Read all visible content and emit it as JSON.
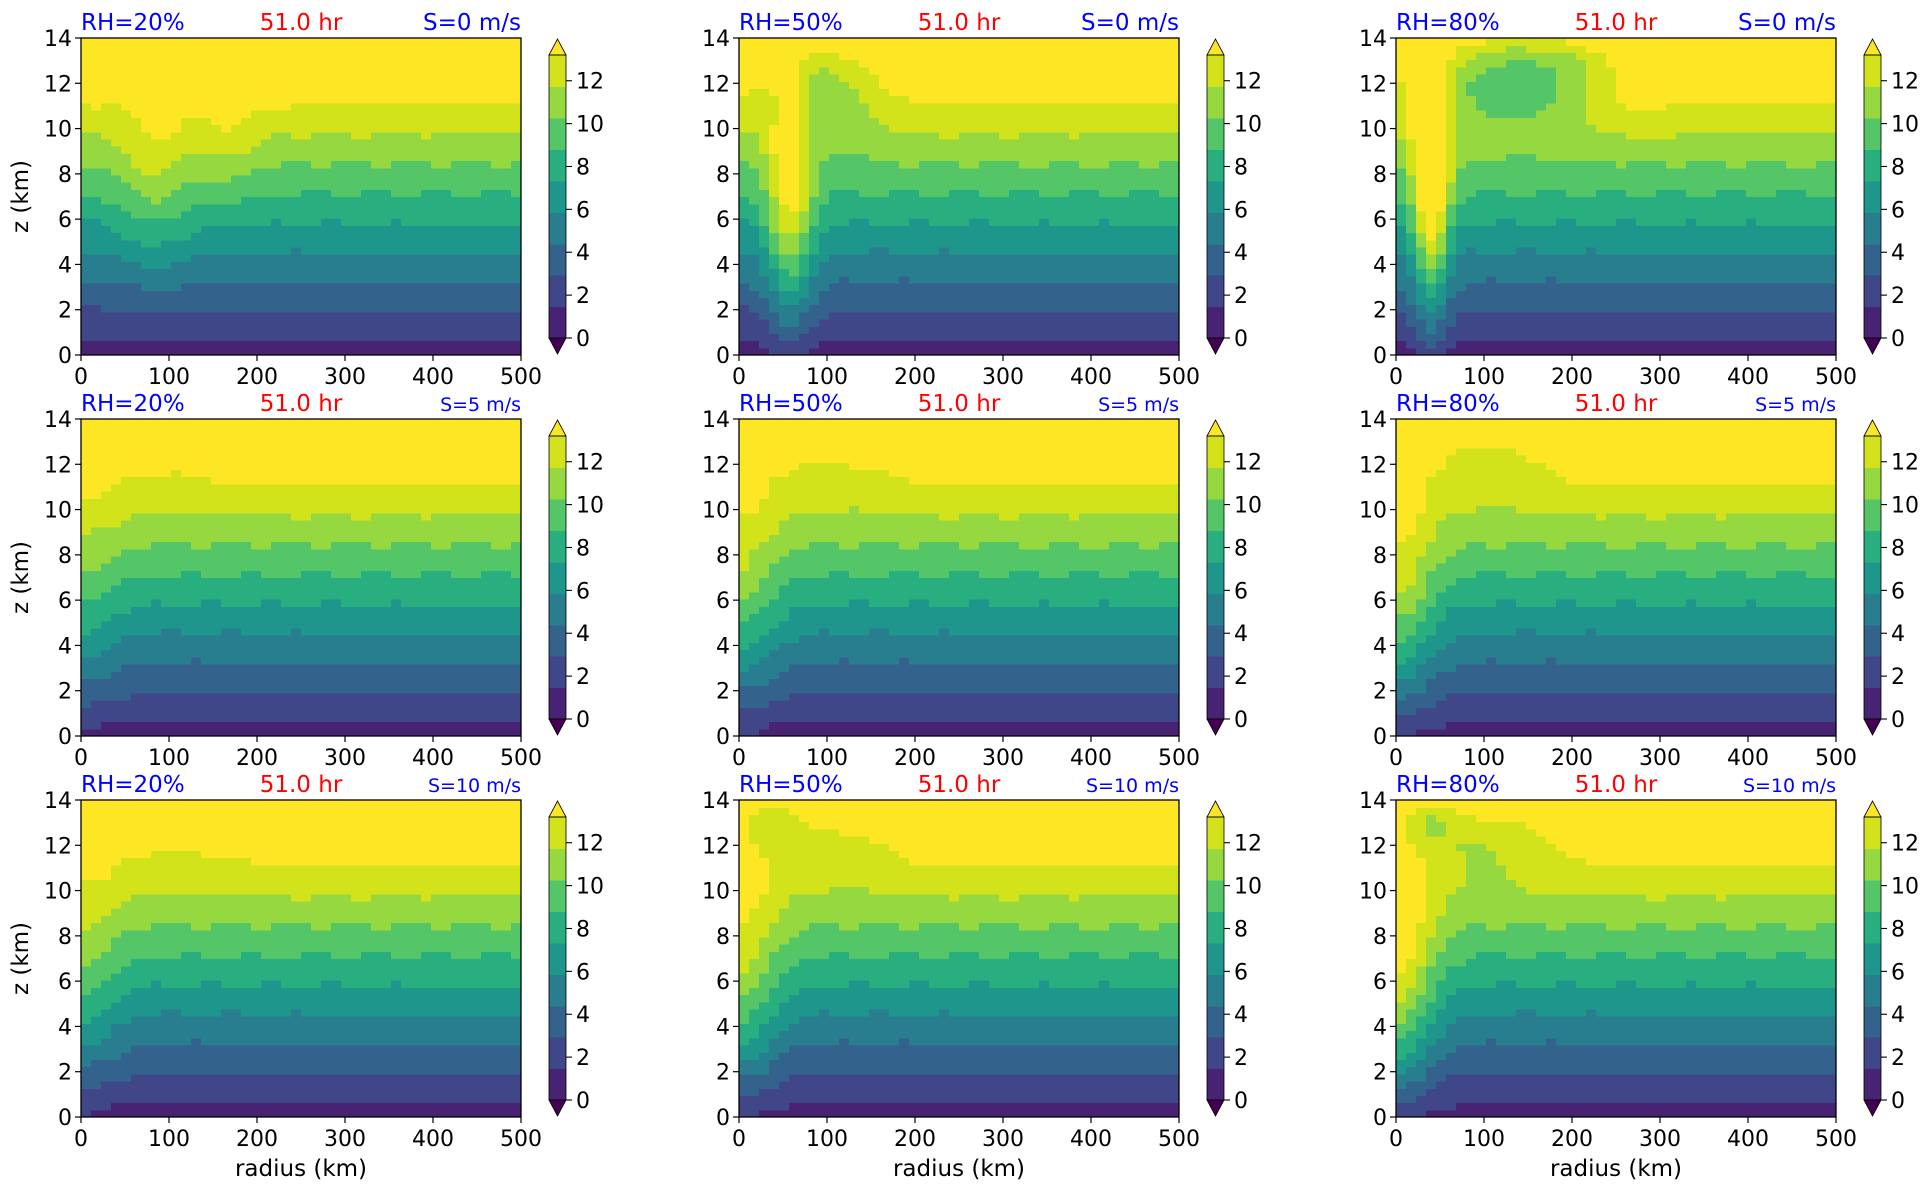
{
  "figure": {
    "colormap": [
      "#440154",
      "#482374",
      "#3f4788",
      "#33638d",
      "#287d8e",
      "#1f968b",
      "#29af7f",
      "#55c667",
      "#95d840",
      "#d2e21b",
      "#fde725"
    ],
    "title_colors": {
      "rh": "#0000ff",
      "time": "#ff0000",
      "shear": "#0000ff"
    }
  },
  "chart_data": [
    {
      "type": "heatmap",
      "rh_label": "RH=20%",
      "time_label": "51.0 hr",
      "shear_label": "S=0 m/s",
      "xlabel": "",
      "ylabel": "z (km)",
      "xlim": [
        0,
        500
      ],
      "ylim": [
        0,
        14
      ],
      "x_ticks": [
        "0",
        "100",
        "200",
        "300",
        "400",
        "500"
      ],
      "y_ticks": [
        "0",
        "2",
        "4",
        "6",
        "8",
        "10",
        "12",
        "14"
      ],
      "colorbar": {
        "levels": [
          0,
          2,
          4,
          6,
          8,
          10,
          12
        ],
        "extend": "both",
        "tick_labels": [
          "0",
          "2",
          "4",
          "6",
          "8",
          "10",
          "12"
        ]
      }
    },
    {
      "type": "heatmap",
      "rh_label": "RH=50%",
      "time_label": "51.0 hr",
      "shear_label": "S=0 m/s",
      "xlabel": "",
      "ylabel": "",
      "xlim": [
        0,
        500
      ],
      "ylim": [
        0,
        14
      ],
      "x_ticks": [
        "0",
        "100",
        "200",
        "300",
        "400",
        "500"
      ],
      "y_ticks": [
        "0",
        "2",
        "4",
        "6",
        "8",
        "10",
        "12",
        "14"
      ],
      "colorbar": {
        "levels": [
          0,
          2,
          4,
          6,
          8,
          10,
          12
        ],
        "extend": "both",
        "tick_labels": [
          "0",
          "2",
          "4",
          "6",
          "8",
          "10",
          "12"
        ]
      }
    },
    {
      "type": "heatmap",
      "rh_label": "RH=80%",
      "time_label": "51.0 hr",
      "shear_label": "S=0 m/s",
      "xlabel": "",
      "ylabel": "",
      "xlim": [
        0,
        500
      ],
      "ylim": [
        0,
        14
      ],
      "x_ticks": [
        "0",
        "100",
        "200",
        "300",
        "400",
        "500"
      ],
      "y_ticks": [
        "0",
        "2",
        "4",
        "6",
        "8",
        "10",
        "12",
        "14"
      ],
      "colorbar": {
        "levels": [
          0,
          2,
          4,
          6,
          8,
          10,
          12
        ],
        "extend": "both",
        "tick_labels": [
          "0",
          "2",
          "4",
          "6",
          "8",
          "10",
          "12"
        ]
      }
    },
    {
      "type": "heatmap",
      "rh_label": "RH=20%",
      "time_label": "51.0 hr",
      "shear_label": "S=5 m/s",
      "xlabel": "",
      "ylabel": "z (km)",
      "xlim": [
        0,
        500
      ],
      "ylim": [
        0,
        14
      ],
      "x_ticks": [
        "0",
        "100",
        "200",
        "300",
        "400",
        "500"
      ],
      "y_ticks": [
        "0",
        "2",
        "4",
        "6",
        "8",
        "10",
        "12",
        "14"
      ],
      "colorbar": {
        "levels": [
          0,
          2,
          4,
          6,
          8,
          10,
          12
        ],
        "extend": "both",
        "tick_labels": [
          "0",
          "2",
          "4",
          "6",
          "8",
          "10",
          "12"
        ]
      }
    },
    {
      "type": "heatmap",
      "rh_label": "RH=50%",
      "time_label": "51.0 hr",
      "shear_label": "S=5 m/s",
      "xlabel": "",
      "ylabel": "",
      "xlim": [
        0,
        500
      ],
      "ylim": [
        0,
        14
      ],
      "x_ticks": [
        "0",
        "100",
        "200",
        "300",
        "400",
        "500"
      ],
      "y_ticks": [
        "0",
        "2",
        "4",
        "6",
        "8",
        "10",
        "12",
        "14"
      ],
      "colorbar": {
        "levels": [
          0,
          2,
          4,
          6,
          8,
          10,
          12
        ],
        "extend": "both",
        "tick_labels": [
          "0",
          "2",
          "4",
          "6",
          "8",
          "10",
          "12"
        ]
      }
    },
    {
      "type": "heatmap",
      "rh_label": "RH=80%",
      "time_label": "51.0 hr",
      "shear_label": "S=5 m/s",
      "xlabel": "",
      "ylabel": "",
      "xlim": [
        0,
        500
      ],
      "ylim": [
        0,
        14
      ],
      "x_ticks": [
        "0",
        "100",
        "200",
        "300",
        "400",
        "500"
      ],
      "y_ticks": [
        "0",
        "2",
        "4",
        "6",
        "8",
        "10",
        "12",
        "14"
      ],
      "colorbar": {
        "levels": [
          0,
          2,
          4,
          6,
          8,
          10,
          12
        ],
        "extend": "both",
        "tick_labels": [
          "0",
          "2",
          "4",
          "6",
          "8",
          "10",
          "12"
        ]
      }
    },
    {
      "type": "heatmap",
      "rh_label": "RH=20%",
      "time_label": "51.0 hr",
      "shear_label": "S=10 m/s",
      "xlabel": "radius (km)",
      "ylabel": "z (km)",
      "xlim": [
        0,
        500
      ],
      "ylim": [
        0,
        14
      ],
      "x_ticks": [
        "0",
        "100",
        "200",
        "300",
        "400",
        "500"
      ],
      "y_ticks": [
        "0",
        "2",
        "4",
        "6",
        "8",
        "10",
        "12",
        "14"
      ],
      "colorbar": {
        "levels": [
          0,
          2,
          4,
          6,
          8,
          10,
          12
        ],
        "extend": "both",
        "tick_labels": [
          "0",
          "2",
          "4",
          "6",
          "8",
          "10",
          "12"
        ]
      }
    },
    {
      "type": "heatmap",
      "rh_label": "RH=50%",
      "time_label": "51.0 hr",
      "shear_label": "S=10 m/s",
      "xlabel": "radius (km)",
      "ylabel": "",
      "xlim": [
        0,
        500
      ],
      "ylim": [
        0,
        14
      ],
      "x_ticks": [
        "0",
        "100",
        "200",
        "300",
        "400",
        "500"
      ],
      "y_ticks": [
        "0",
        "2",
        "4",
        "6",
        "8",
        "10",
        "12",
        "14"
      ],
      "colorbar": {
        "levels": [
          0,
          2,
          4,
          6,
          8,
          10,
          12
        ],
        "extend": "both",
        "tick_labels": [
          "0",
          "2",
          "4",
          "6",
          "8",
          "10",
          "12"
        ]
      }
    },
    {
      "type": "heatmap",
      "rh_label": "RH=80%",
      "time_label": "51.0 hr",
      "shear_label": "S=10 m/s",
      "xlabel": "radius (km)",
      "ylabel": "",
      "xlim": [
        0,
        500
      ],
      "ylim": [
        0,
        14
      ],
      "x_ticks": [
        "0",
        "100",
        "200",
        "300",
        "400",
        "500"
      ],
      "y_ticks": [
        "0",
        "2",
        "4",
        "6",
        "8",
        "10",
        "12",
        "14"
      ],
      "colorbar": {
        "levels": [
          0,
          2,
          4,
          6,
          8,
          10,
          12
        ],
        "extend": "both",
        "tick_labels": [
          "0",
          "2",
          "4",
          "6",
          "8",
          "10",
          "12"
        ]
      }
    }
  ]
}
